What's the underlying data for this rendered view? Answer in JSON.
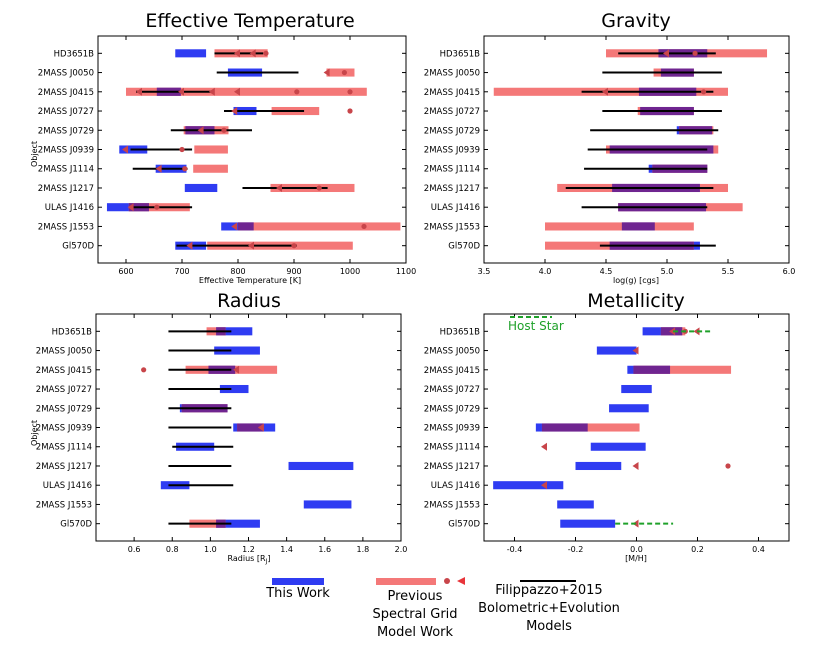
{
  "colors": {
    "this_work": "#2f3cf2",
    "previous": "#f47878",
    "overlap": "#6f2590",
    "filippazzo": "#000000",
    "marker": "#c8454a",
    "host": "#1fa12a"
  },
  "chart_data": [
    {
      "id": "teff",
      "type": "range-bar",
      "title": "Effective Temperature",
      "xlabel": "Effective Temperature [K]",
      "ylabel": "Object",
      "xlim": [
        550,
        1100
      ],
      "xticks": [
        600,
        700,
        800,
        900,
        1000,
        1100
      ],
      "ytick_labels": [
        "HD3651B",
        "2MASS J0050",
        "2MASS J0415",
        "2MASS J0727",
        "2MASS J0729",
        "2MASS J0939",
        "2MASS J1114",
        "2MASS J1217",
        "ULAS J1416",
        "2MASS J1553",
        "Gl570D"
      ],
      "this_work": [
        [
          688,
          743
        ],
        [
          782,
          843
        ],
        [
          655,
          698
        ],
        [
          792,
          833
        ],
        [
          706,
          758
        ],
        [
          588,
          638
        ],
        [
          653,
          708
        ],
        [
          705,
          763
        ],
        [
          566,
          641
        ],
        [
          770,
          828
        ],
        [
          688,
          743
        ]
      ],
      "previous": [
        [
          758,
          853
        ],
        [
          958,
          1008
        ],
        [
          600,
          1030
        ],
        [
          860,
          945
        ],
        [
          703,
          783
        ],
        [
          722,
          782
        ],
        [
          720,
          782
        ],
        [
          858,
          1008
        ],
        [
          605,
          714
        ],
        [
          800,
          1090
        ],
        [
          745,
          1005
        ]
      ],
      "filippazzo": [
        [
          758,
          845
        ],
        [
          762,
          908
        ],
        [
          618,
          758
        ],
        [
          775,
          918
        ],
        [
          680,
          825
        ],
        [
          608,
          718
        ],
        [
          612,
          710
        ],
        [
          808,
          960
        ],
        [
          608,
          718
        ],
        null,
        [
          690,
          905
        ]
      ],
      "markers": [
        [
          [
            800,
            828
          ],
          [
            850
          ]
        ],
        [
          [
            960
          ],
          [
            990
          ]
        ],
        [
          [
            625,
            700,
            755,
            800
          ],
          [
            905,
            1000
          ]
        ],
        [
          [
            795
          ],
          [
            1000
          ]
        ],
        [
          [
            735
          ],
          [
            775
          ]
        ],
        [
          [
            600
          ],
          [
            700
          ]
        ],
        [
          [
            660
          ],
          [
            705
          ]
        ],
        [
          [
            875
          ],
          [
            945
          ]
        ],
        [
          [
            610
          ],
          [
            655
          ]
        ],
        [
          [
            795
          ],
          [
            1025
          ]
        ],
        [
          [
            715,
            825
          ],
          [
            900
          ]
        ]
      ]
    },
    {
      "id": "grav",
      "type": "range-bar",
      "title": "Gravity",
      "xlabel": "log(g) [cgs]",
      "ylabel": "",
      "xlim": [
        3.5,
        6.0
      ],
      "xticks": [
        3.5,
        4.0,
        4.5,
        5.0,
        5.5,
        6.0
      ],
      "tick_format": "1",
      "ytick_labels": [
        "HD3651B",
        "2MASS J0050",
        "2MASS J0415",
        "2MASS J0727",
        "2MASS J0729",
        "2MASS J0939",
        "2MASS J1114",
        "2MASS J1217",
        "ULAS J1416",
        "2MASS J1553",
        "Gl570D"
      ],
      "this_work": [
        [
          4.93,
          5.33
        ],
        [
          4.95,
          5.22
        ],
        [
          4.77,
          5.24
        ],
        [
          4.78,
          5.22
        ],
        [
          5.08,
          5.37
        ],
        [
          4.53,
          5.38
        ],
        [
          4.85,
          5.33
        ],
        [
          4.55,
          5.27
        ],
        [
          4.6,
          5.32
        ],
        [
          4.63,
          4.9
        ],
        [
          4.53,
          5.27
        ]
      ],
      "previous": [
        [
          4.5,
          5.82
        ],
        [
          4.89,
          5.22
        ],
        [
          3.58,
          5.5
        ],
        [
          4.76,
          5.22
        ],
        [
          5.1,
          5.38
        ],
        [
          4.5,
          5.42
        ],
        [
          4.88,
          5.33
        ],
        [
          4.1,
          5.5
        ],
        [
          4.6,
          5.62
        ],
        [
          4.0,
          5.22
        ],
        [
          4.0,
          5.22
        ]
      ],
      "filippazzo": [
        [
          4.6,
          5.4
        ],
        [
          4.47,
          5.45
        ],
        [
          4.3,
          5.38
        ],
        [
          4.47,
          5.45
        ],
        [
          4.37,
          5.42
        ],
        [
          4.35,
          5.33
        ],
        [
          4.32,
          5.33
        ],
        [
          4.17,
          5.38
        ],
        [
          4.3,
          5.33
        ],
        null,
        [
          4.45,
          5.4
        ]
      ],
      "markers": [
        [
          [
            5.0
          ],
          [
            5.23
          ]
        ],
        [
          [],
          []
        ],
        [
          [
            4.5
          ],
          [
            5.3
          ]
        ],
        [
          [],
          []
        ],
        [
          [],
          []
        ],
        [
          [],
          []
        ],
        [
          [],
          []
        ],
        [
          [],
          []
        ],
        [
          [],
          []
        ],
        [
          [],
          []
        ],
        [
          [],
          []
        ]
      ]
    },
    {
      "id": "rad",
      "type": "range-bar",
      "title": "Radius",
      "xlabel": "Radius [R",
      "xlabel_sub": "J",
      "xlabel_end": "]",
      "ylabel": "Object",
      "xlim": [
        0.4,
        2.0
      ],
      "xticks": [
        0.6,
        0.8,
        1.0,
        1.2,
        1.4,
        1.6,
        1.8,
        2.0
      ],
      "tick_format": "1",
      "ytick_labels": [
        "HD3651B",
        "2MASS J0050",
        "2MASS J0415",
        "2MASS J0727",
        "2MASS J0729",
        "2MASS J0939",
        "2MASS J1114",
        "2MASS J1217",
        "ULAS J1416",
        "2MASS J1553",
        "Gl570D"
      ],
      "this_work": [
        [
          1.03,
          1.22
        ],
        [
          1.02,
          1.26
        ],
        [
          0.99,
          1.13
        ],
        [
          1.05,
          1.2
        ],
        [
          0.84,
          1.09
        ],
        [
          1.12,
          1.34
        ],
        [
          0.82,
          1.02
        ],
        [
          1.41,
          1.75
        ],
        [
          0.74,
          0.89
        ],
        [
          1.49,
          1.74
        ],
        [
          1.03,
          1.26
        ]
      ],
      "previous": [
        [
          0.98,
          1.08
        ],
        null,
        [
          0.87,
          1.35
        ],
        null,
        [
          0.85,
          1.09
        ],
        [
          1.14,
          1.28
        ],
        null,
        null,
        null,
        null,
        [
          0.89,
          1.08
        ]
      ],
      "filippazzo": [
        [
          0.78,
          1.11
        ],
        [
          0.78,
          1.11
        ],
        [
          0.78,
          1.11
        ],
        [
          0.78,
          1.11
        ],
        [
          0.78,
          1.11
        ],
        [
          0.78,
          1.11
        ],
        [
          0.8,
          1.12
        ],
        [
          0.78,
          1.11
        ],
        [
          0.78,
          1.12
        ],
        null,
        [
          0.78,
          1.11
        ]
      ],
      "markers": [
        [
          [],
          []
        ],
        [
          [],
          []
        ],
        [
          [
            1.14
          ],
          [
            0.65
          ]
        ],
        [
          [],
          []
        ],
        [
          [],
          []
        ],
        [
          [
            1.27
          ],
          []
        ],
        [
          [],
          []
        ],
        [
          [],
          []
        ],
        [
          [],
          []
        ],
        [
          [],
          []
        ],
        [
          [],
          []
        ]
      ]
    },
    {
      "id": "met",
      "type": "range-bar",
      "title": "Metallicity",
      "xlabel": "[M/H]",
      "ylabel": "",
      "xlim": [
        -0.5,
        0.5
      ],
      "xticks": [
        -0.4,
        -0.2,
        0.0,
        0.2,
        0.4
      ],
      "tick_format": "1",
      "ytick_labels": [
        "HD3651B",
        "2MASS J0050",
        "2MASS J0415",
        "2MASS J0727",
        "2MASS J0729",
        "2MASS J0939",
        "2MASS J1114",
        "2MASS J1217",
        "ULAS J1416",
        "2MASS J1553",
        "Gl570D"
      ],
      "this_work": [
        [
          0.02,
          0.15
        ],
        [
          -0.13,
          0.0
        ],
        [
          -0.03,
          0.11
        ],
        [
          -0.05,
          0.05
        ],
        [
          -0.09,
          0.04
        ],
        [
          -0.33,
          -0.16
        ],
        [
          -0.15,
          0.03
        ],
        [
          -0.2,
          -0.05
        ],
        [
          -0.47,
          -0.24
        ],
        [
          -0.26,
          -0.14
        ],
        [
          -0.25,
          -0.07
        ]
      ],
      "previous": [
        [
          0.08,
          0.16
        ],
        null,
        [
          -0.01,
          0.31
        ],
        null,
        null,
        [
          -0.31,
          0.01
        ],
        null,
        null,
        null,
        null,
        null
      ],
      "filippazzo": [
        null,
        null,
        null,
        null,
        null,
        null,
        null,
        null,
        null,
        null,
        null
      ],
      "markers": [
        [
          [
            0.12,
            0.2
          ],
          [
            0.16
          ]
        ],
        [
          [
            0.0
          ],
          []
        ],
        [
          [],
          []
        ],
        [
          [],
          []
        ],
        [
          [],
          []
        ],
        [
          [],
          []
        ],
        [
          [
            -0.3
          ],
          []
        ],
        [
          [
            0.0
          ],
          [
            0.3
          ]
        ],
        [
          [
            -0.3
          ],
          []
        ],
        [
          [],
          []
        ],
        [
          [
            0.0
          ],
          []
        ]
      ],
      "host_star": {
        "label": "Host Star",
        "segments": [
          [
            0.12,
            0.25
          ],
          [
            -0.07,
            0.12
          ]
        ],
        "rows": [
          0,
          10
        ]
      }
    }
  ],
  "legend": {
    "this_work": "This Work",
    "previous": [
      "Previous",
      "Spectral Grid",
      "Model Work"
    ],
    "filippazzo": [
      "Filippazzo+2015",
      "Bolometric+Evolution",
      "Models"
    ]
  }
}
